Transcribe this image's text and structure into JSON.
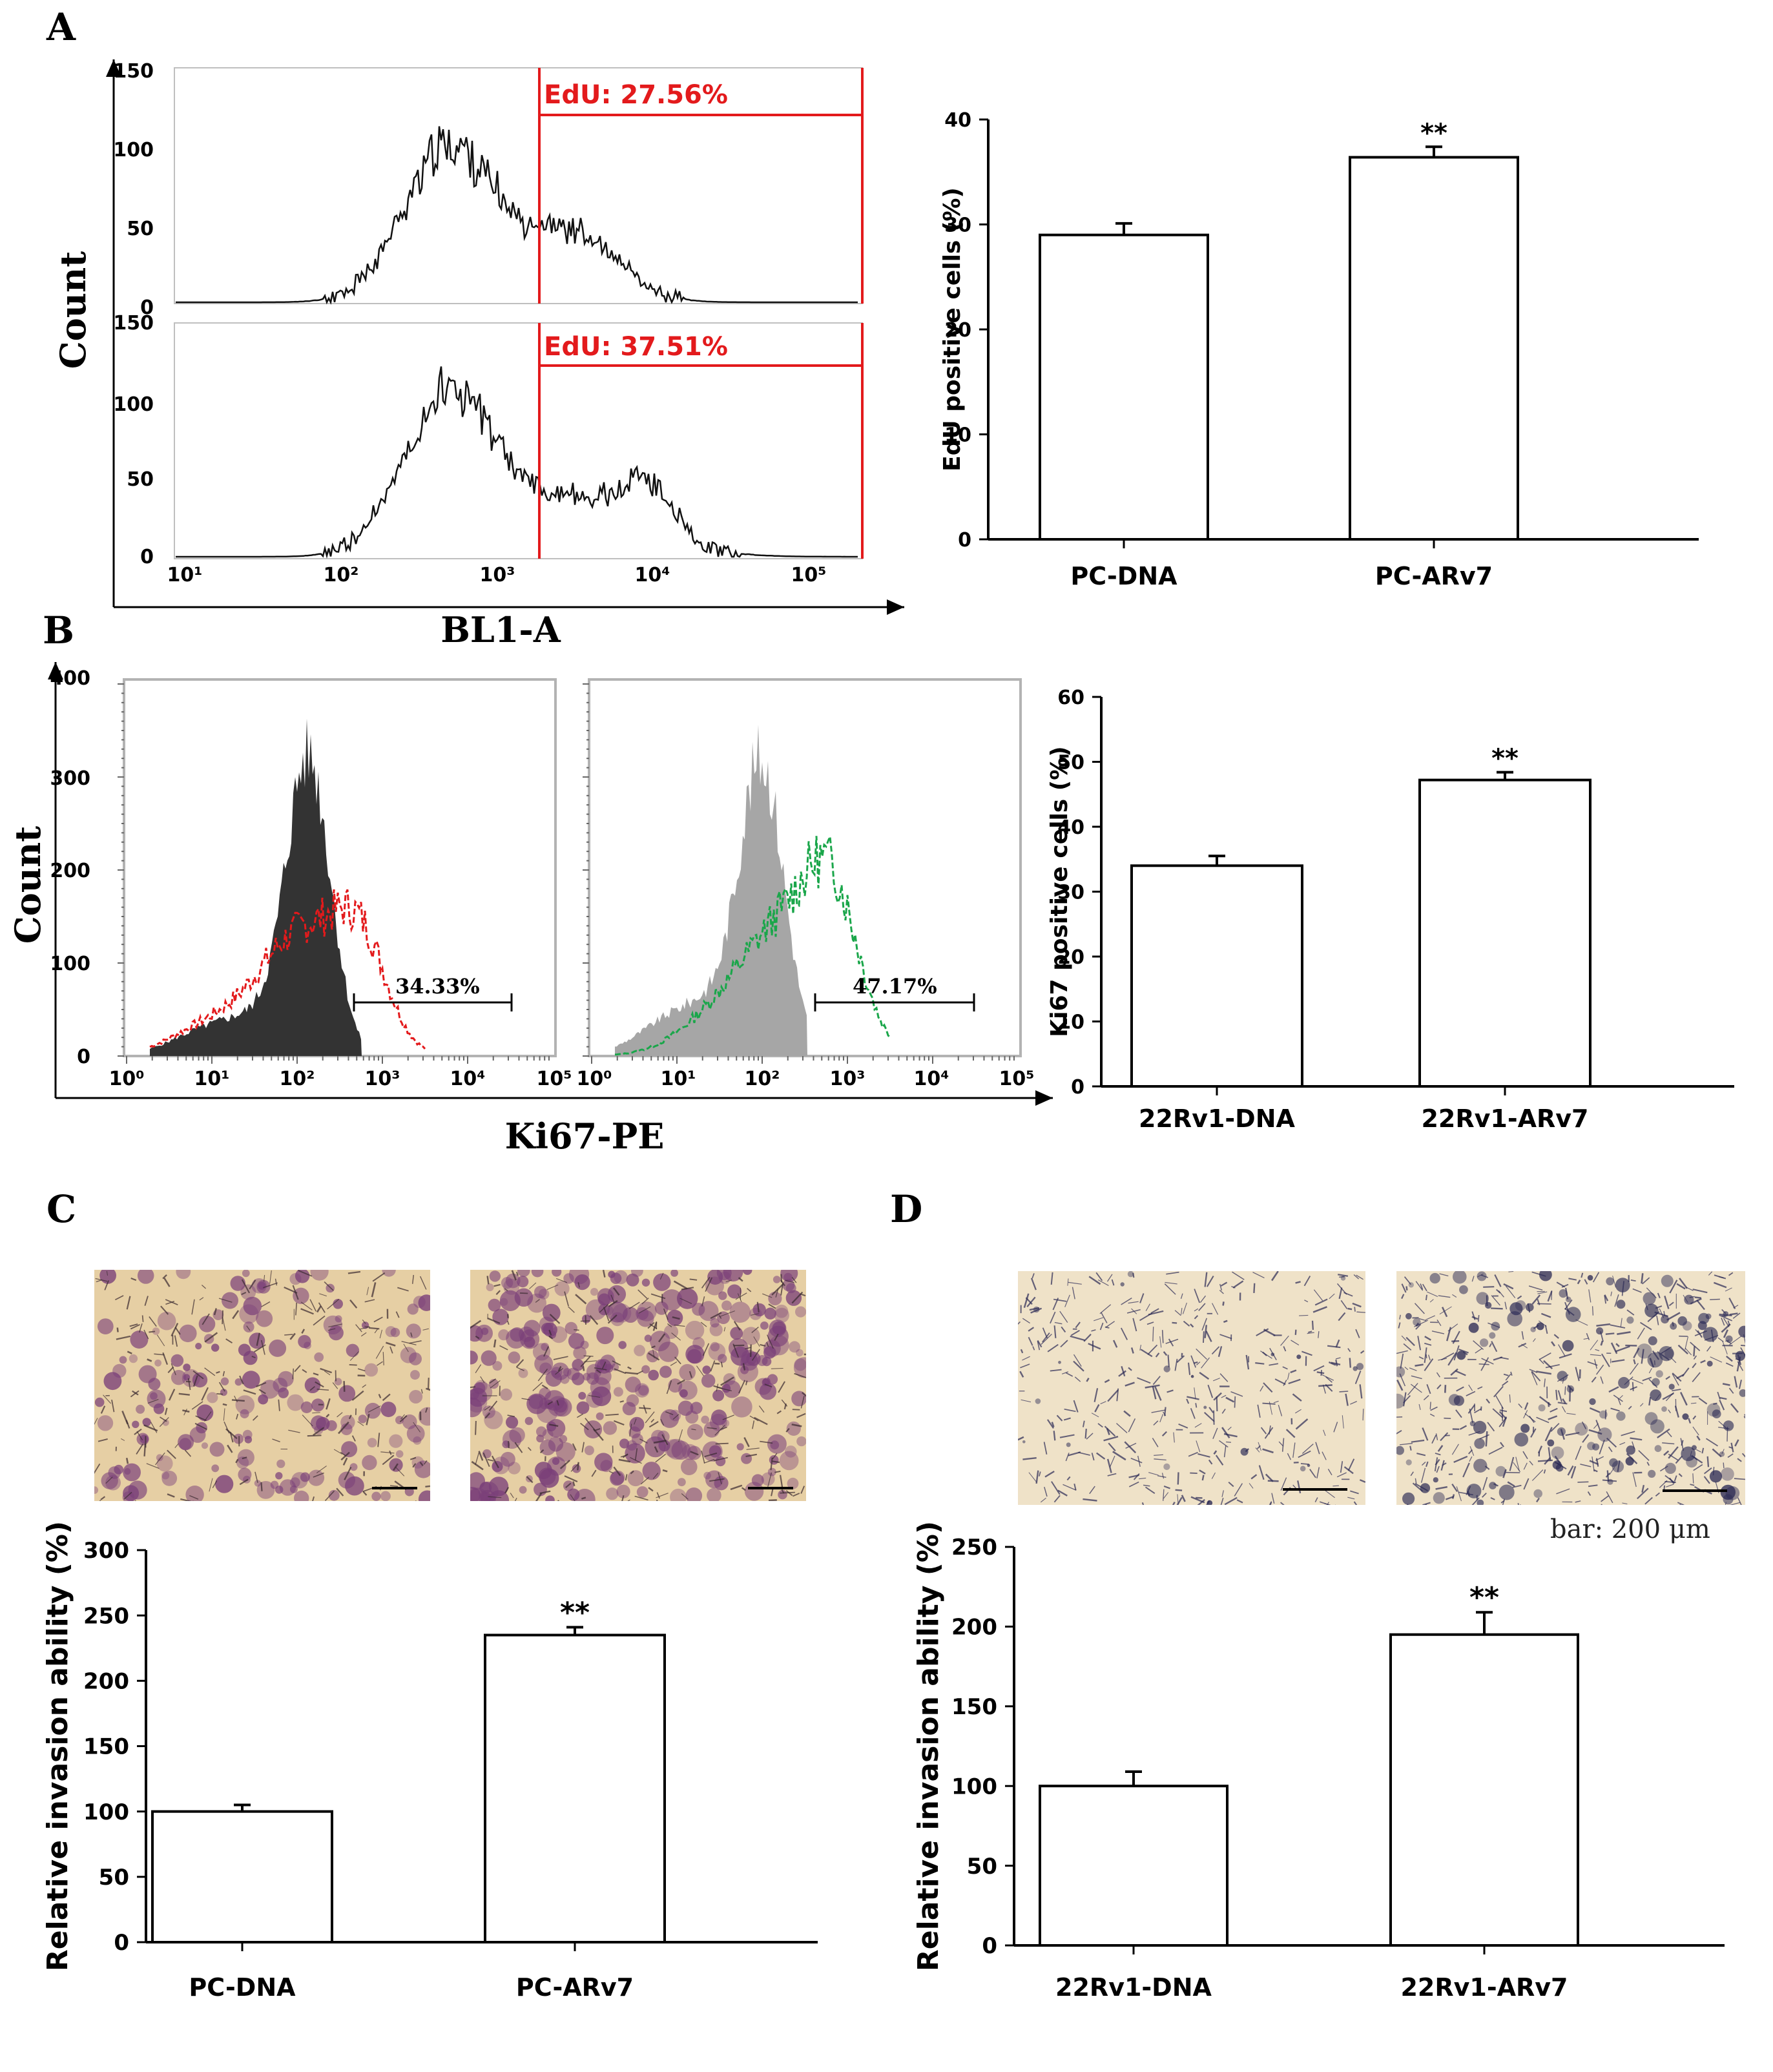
{
  "panels": {
    "A": {
      "letter": "A"
    },
    "B": {
      "letter": "B"
    },
    "C": {
      "letter": "C"
    },
    "D": {
      "letter": "D"
    }
  },
  "histA": {
    "ylabel": "Count",
    "xlabel": "BL1-A",
    "xticks": [
      "10¹",
      "10²",
      "10³",
      "10⁴",
      "10⁵"
    ],
    "gate_color": "#e31a1c",
    "top": {
      "gate_label": "EdU: 27.56%",
      "yticks": [
        "0",
        "50",
        "100",
        "150"
      ]
    },
    "bottom": {
      "gate_label": "EdU: 37.51%",
      "yticks": [
        "0",
        "50",
        "100",
        "150"
      ]
    }
  },
  "histB": {
    "ylabel": "Count",
    "xlabel": "Ki67-PE",
    "yticks": [
      "0",
      "100",
      "200",
      "300",
      "400"
    ],
    "xticks": [
      "10⁰",
      "10¹",
      "10²",
      "10³",
      "10⁴",
      "10⁵"
    ],
    "left": {
      "gate_label": "34.33%",
      "line_color": "#e31a1c",
      "fill_color": "#333333"
    },
    "right": {
      "gate_label": "47.17%",
      "line_color": "#1aa64a",
      "fill_color": "#a6a6a6"
    }
  },
  "micrographs": {
    "scale_label": "bar: 200 μm",
    "C": {
      "stain": "#7a3f79"
    },
    "D": {
      "stain": "#2b2a55"
    }
  },
  "chart_data": [
    {
      "id": "A_bar",
      "type": "bar",
      "categories": [
        "PC-DNA",
        "PC-ARv7"
      ],
      "values": [
        29,
        36.4
      ],
      "errors": [
        1.1,
        1.0
      ],
      "significance": [
        "",
        "**"
      ],
      "ylabel": "EdU positive cells (%)",
      "xlabel": "",
      "title": "",
      "ylim": [
        0,
        40
      ],
      "yticks": [
        0,
        10,
        20,
        30,
        40
      ]
    },
    {
      "id": "B_bar",
      "type": "bar",
      "categories": [
        "22Rv1-DNA",
        "22Rv1-ARv7"
      ],
      "values": [
        34,
        47.2
      ],
      "errors": [
        1.5,
        1.2
      ],
      "significance": [
        "",
        "**"
      ],
      "ylabel": "Ki67 positive cells (%)",
      "xlabel": "",
      "title": "",
      "ylim": [
        0,
        60
      ],
      "yticks": [
        0,
        10,
        20,
        30,
        40,
        50,
        60
      ]
    },
    {
      "id": "C_bar",
      "type": "bar",
      "categories": [
        "PC-DNA",
        "PC-ARv7"
      ],
      "values": [
        100,
        235
      ],
      "errors": [
        5,
        6
      ],
      "significance": [
        "",
        "**"
      ],
      "ylabel": "Relative invasion ability (%)",
      "xlabel": "",
      "title": "",
      "ylim": [
        0,
        300
      ],
      "yticks": [
        0,
        50,
        100,
        150,
        200,
        250,
        300
      ]
    },
    {
      "id": "D_bar",
      "type": "bar",
      "categories": [
        "22Rv1-DNA",
        "22Rv1-ARv7"
      ],
      "values": [
        100,
        195
      ],
      "errors": [
        9,
        14
      ],
      "significance": [
        "",
        "**"
      ],
      "ylabel": "Relative invasion ability (%)",
      "xlabel": "",
      "title": "",
      "ylim": [
        0,
        250
      ],
      "yticks": [
        0,
        50,
        100,
        150,
        200,
        250
      ]
    }
  ]
}
